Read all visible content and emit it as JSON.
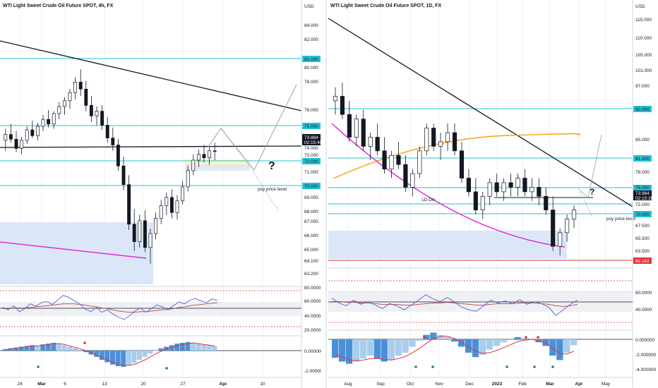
{
  "colors": {
    "bg": "#ffffff",
    "up": "#131722",
    "down": "#131722",
    "cyan": "#22c3d6",
    "magenta": "#e02ad8",
    "orange": "#f2a21a",
    "red": "#e0323a",
    "blue": "#2962ff",
    "rsi": "#5b5bd6",
    "rsi_ma": "#b04a4a",
    "macd_hist": "#4a90d9",
    "macd_hist_pale": "#a9cdee",
    "zone_blue": "#dbe7f9",
    "zone_yellow": "#fbf5c8",
    "grid": "#eef0f3",
    "green": "#1e8e3e"
  },
  "chart_data": [
    {
      "type": "candlestick",
      "title": "WTI Light Sweet Crude Oil Future SPOT, 4h, FX",
      "axis_unit": "USD",
      "ylim": [
        62.5,
        86.0
      ],
      "price_ticks": [
        "84.000",
        "82.000",
        "80.000",
        "78.000",
        "76.000",
        "74.000",
        "73.000",
        "71.000",
        "69.000",
        "68.000",
        "67.000",
        "66.000",
        "65.000",
        "64.100",
        "63.200"
      ],
      "level_labels": [
        "81.000",
        "75.000",
        "72.000",
        "70.000"
      ],
      "last_price": {
        "price": "73.884",
        "countdown": "02:15:40"
      },
      "x_ticks": [
        "24",
        "Mar",
        "6",
        "13",
        "20",
        "27",
        "Apr",
        "10"
      ],
      "annotations": [
        "?",
        "psy price level"
      ],
      "candles": [
        {
          "o": 74.8,
          "h": 75.8,
          "l": 73.9,
          "c": 75.3
        },
        {
          "o": 75.3,
          "h": 76.2,
          "l": 74.6,
          "c": 74.9
        },
        {
          "o": 74.9,
          "h": 75.6,
          "l": 73.8,
          "c": 74.1
        },
        {
          "o": 74.1,
          "h": 75.1,
          "l": 73.6,
          "c": 74.8
        },
        {
          "o": 74.8,
          "h": 76.0,
          "l": 74.5,
          "c": 75.7
        },
        {
          "o": 75.7,
          "h": 76.5,
          "l": 75.0,
          "c": 75.2
        },
        {
          "o": 75.2,
          "h": 76.3,
          "l": 74.8,
          "c": 76.0
        },
        {
          "o": 76.0,
          "h": 77.0,
          "l": 75.6,
          "c": 76.6
        },
        {
          "o": 76.6,
          "h": 77.4,
          "l": 75.9,
          "c": 76.2
        },
        {
          "o": 76.2,
          "h": 77.3,
          "l": 75.8,
          "c": 77.1
        },
        {
          "o": 77.1,
          "h": 78.1,
          "l": 76.6,
          "c": 77.7
        },
        {
          "o": 77.7,
          "h": 78.5,
          "l": 77.0,
          "c": 78.2
        },
        {
          "o": 78.2,
          "h": 79.2,
          "l": 77.5,
          "c": 78.9
        },
        {
          "o": 78.9,
          "h": 80.2,
          "l": 78.3,
          "c": 79.8
        },
        {
          "o": 79.8,
          "h": 80.9,
          "l": 78.6,
          "c": 79.2
        },
        {
          "o": 79.2,
          "h": 79.9,
          "l": 77.3,
          "c": 77.8
        },
        {
          "o": 77.8,
          "h": 78.6,
          "l": 76.4,
          "c": 76.9
        },
        {
          "o": 76.9,
          "h": 77.7,
          "l": 76.1,
          "c": 77.3
        },
        {
          "o": 77.3,
          "h": 77.8,
          "l": 75.7,
          "c": 76.1
        },
        {
          "o": 76.1,
          "h": 76.8,
          "l": 74.6,
          "c": 75.0
        },
        {
          "o": 75.0,
          "h": 75.9,
          "l": 73.9,
          "c": 74.4
        },
        {
          "o": 74.4,
          "h": 74.9,
          "l": 72.2,
          "c": 72.6
        },
        {
          "o": 72.6,
          "h": 73.4,
          "l": 70.5,
          "c": 71.0
        },
        {
          "o": 71.0,
          "h": 71.8,
          "l": 67.1,
          "c": 67.6
        },
        {
          "o": 67.6,
          "h": 68.9,
          "l": 65.3,
          "c": 66.1
        },
        {
          "o": 66.1,
          "h": 68.4,
          "l": 65.6,
          "c": 67.9
        },
        {
          "o": 67.9,
          "h": 68.8,
          "l": 65.2,
          "c": 65.6
        },
        {
          "o": 65.6,
          "h": 67.2,
          "l": 64.2,
          "c": 66.8
        },
        {
          "o": 66.8,
          "h": 68.6,
          "l": 66.3,
          "c": 68.1
        },
        {
          "o": 68.1,
          "h": 69.7,
          "l": 67.6,
          "c": 69.2
        },
        {
          "o": 69.2,
          "h": 70.3,
          "l": 68.4,
          "c": 69.9
        },
        {
          "o": 69.9,
          "h": 70.6,
          "l": 68.1,
          "c": 68.6
        },
        {
          "o": 68.6,
          "h": 70.1,
          "l": 68.0,
          "c": 69.6
        },
        {
          "o": 69.6,
          "h": 71.3,
          "l": 69.3,
          "c": 70.8
        },
        {
          "o": 70.8,
          "h": 72.6,
          "l": 70.4,
          "c": 72.2
        },
        {
          "o": 72.2,
          "h": 73.6,
          "l": 71.8,
          "c": 73.1
        },
        {
          "o": 73.1,
          "h": 74.0,
          "l": 72.5,
          "c": 73.6
        },
        {
          "o": 73.6,
          "h": 74.4,
          "l": 72.9,
          "c": 73.3
        },
        {
          "o": 73.3,
          "h": 74.2,
          "l": 72.7,
          "c": 73.9
        },
        {
          "o": 73.9,
          "h": 74.6,
          "l": 73.1,
          "c": 73.884
        }
      ],
      "rsi": {
        "ticks": [
          "80.0000",
          "60.0000",
          "40.0000",
          "20.0000"
        ],
        "values": [
          52,
          48,
          55,
          45,
          50,
          58,
          54,
          60,
          62,
          57,
          65,
          72,
          69,
          63,
          58,
          49,
          45,
          52,
          44,
          48,
          41,
          36,
          32,
          38,
          46,
          51,
          44,
          50,
          56,
          53,
          48,
          55,
          61,
          58,
          64,
          67,
          63,
          60,
          66,
          64
        ],
        "ma": [
          50,
          50,
          51,
          51,
          51,
          52,
          53,
          54,
          55,
          56,
          57,
          58,
          58,
          58,
          57,
          56,
          54,
          53,
          51,
          50,
          48,
          46,
          45,
          44,
          44,
          45,
          45,
          46,
          47,
          48,
          49,
          50,
          52,
          53,
          55,
          56,
          57,
          58,
          59,
          60
        ]
      },
      "macd": {
        "ticks": [
          "0.000000",
          "-2.000000"
        ],
        "hist": [
          0.2,
          0.3,
          0.4,
          0.5,
          0.6,
          0.7,
          0.6,
          0.8,
          0.9,
          1.0,
          0.9,
          0.7,
          0.5,
          0.3,
          0.1,
          -0.2,
          -0.5,
          -0.8,
          -1.2,
          -1.5,
          -1.8,
          -2.0,
          -2.1,
          -1.9,
          -1.6,
          -1.2,
          -0.8,
          -0.4,
          0.0,
          0.3,
          0.5,
          0.7,
          0.9,
          1.0,
          1.1,
          1.0,
          0.9,
          0.8,
          0.7,
          0.6
        ],
        "signal": [
          0.1,
          0.2,
          0.3,
          0.4,
          0.5,
          0.6,
          0.6,
          0.7,
          0.8,
          0.9,
          0.9,
          0.8,
          0.6,
          0.4,
          0.2,
          0.0,
          -0.3,
          -0.6,
          -0.9,
          -1.2,
          -1.5,
          -1.7,
          -1.9,
          -1.9,
          -1.8,
          -1.5,
          -1.2,
          -0.8,
          -0.4,
          -0.1,
          0.2,
          0.4,
          0.6,
          0.8,
          0.9,
          1.0,
          0.9,
          0.8,
          0.7,
          0.6
        ]
      }
    },
    {
      "type": "candlestick",
      "title": "WTI Light Sweet Crude Oil Future SPOT, 1D, FX",
      "axis_unit": "USD",
      "ylim": [
        62.0,
        118.0
      ],
      "price_ticks": [
        "115.000",
        "110.000",
        "105.000",
        "101.000",
        "97.000",
        "85.000",
        "78.000",
        "69.000",
        "67.500",
        "65.500",
        "63.500"
      ],
      "level_labels": [
        "92.000",
        "81.000",
        "75.000",
        "72.000",
        "70.000",
        "62.162"
      ],
      "last_price": {
        "price": "73.984",
        "countdown": "02:15:39"
      },
      "x_ticks": [
        "Aug",
        "Sep",
        "Oct",
        "Nov",
        "Dec",
        "2023",
        "Feb",
        "Mar",
        "Apr",
        "May"
      ],
      "annotations": [
        "?",
        "1D Div",
        "psy price level"
      ],
      "candles": [
        {
          "o": 98,
          "h": 101,
          "l": 95,
          "c": 99
        },
        {
          "o": 99,
          "h": 102,
          "l": 94,
          "c": 95
        },
        {
          "o": 95,
          "h": 98,
          "l": 89,
          "c": 90
        },
        {
          "o": 90,
          "h": 95,
          "l": 88,
          "c": 94
        },
        {
          "o": 94,
          "h": 96,
          "l": 87,
          "c": 88
        },
        {
          "o": 88,
          "h": 91,
          "l": 85,
          "c": 90
        },
        {
          "o": 90,
          "h": 93,
          "l": 86,
          "c": 87
        },
        {
          "o": 87,
          "h": 90,
          "l": 82,
          "c": 83
        },
        {
          "o": 83,
          "h": 87,
          "l": 81,
          "c": 86
        },
        {
          "o": 86,
          "h": 89,
          "l": 83,
          "c": 84
        },
        {
          "o": 84,
          "h": 86,
          "l": 78,
          "c": 79
        },
        {
          "o": 79,
          "h": 83,
          "l": 77,
          "c": 82
        },
        {
          "o": 82,
          "h": 88,
          "l": 81,
          "c": 87
        },
        {
          "o": 87,
          "h": 93,
          "l": 86,
          "c": 92
        },
        {
          "o": 92,
          "h": 93,
          "l": 87,
          "c": 88
        },
        {
          "o": 88,
          "h": 91,
          "l": 85,
          "c": 89
        },
        {
          "o": 89,
          "h": 93,
          "l": 87,
          "c": 91
        },
        {
          "o": 91,
          "h": 93,
          "l": 86,
          "c": 87
        },
        {
          "o": 87,
          "h": 89,
          "l": 80,
          "c": 81
        },
        {
          "o": 81,
          "h": 83,
          "l": 77,
          "c": 78
        },
        {
          "o": 78,
          "h": 81,
          "l": 73,
          "c": 74
        },
        {
          "o": 74,
          "h": 78,
          "l": 72,
          "c": 77
        },
        {
          "o": 77,
          "h": 81,
          "l": 75,
          "c": 80
        },
        {
          "o": 80,
          "h": 82,
          "l": 77,
          "c": 78
        },
        {
          "o": 78,
          "h": 81,
          "l": 76,
          "c": 80
        },
        {
          "o": 80,
          "h": 82,
          "l": 77,
          "c": 79
        },
        {
          "o": 79,
          "h": 82,
          "l": 77,
          "c": 81
        },
        {
          "o": 81,
          "h": 83,
          "l": 77,
          "c": 78
        },
        {
          "o": 78,
          "h": 81,
          "l": 76,
          "c": 79
        },
        {
          "o": 79,
          "h": 81,
          "l": 75,
          "c": 77
        },
        {
          "o": 77,
          "h": 79,
          "l": 73,
          "c": 74
        },
        {
          "o": 74,
          "h": 77,
          "l": 65,
          "c": 66
        },
        {
          "o": 66,
          "h": 70,
          "l": 64,
          "c": 69
        },
        {
          "o": 69,
          "h": 73,
          "l": 67,
          "c": 72
        },
        {
          "o": 72,
          "h": 75,
          "l": 70,
          "c": 74
        }
      ],
      "rsi": {
        "ticks": [
          "60.0000",
          "40.0000"
        ],
        "values": [
          55,
          48,
          44,
          52,
          46,
          50,
          45,
          40,
          47,
          44,
          38,
          45,
          52,
          60,
          54,
          50,
          56,
          49,
          42,
          38,
          36,
          44,
          52,
          48,
          51,
          47,
          53,
          46,
          50,
          47,
          42,
          30,
          38,
          46,
          52
        ],
        "ma": [
          50,
          50,
          49,
          49,
          48,
          48,
          47,
          46,
          46,
          46,
          45,
          45,
          46,
          47,
          48,
          48,
          49,
          48,
          47,
          46,
          45,
          45,
          46,
          47,
          47,
          47,
          48,
          48,
          48,
          47,
          46,
          44,
          43,
          44,
          46
        ]
      },
      "macd": {
        "ticks": [
          "0.000000",
          "-2.000000",
          "-4.000000"
        ],
        "hist": [
          -2.5,
          -3.0,
          -3.3,
          -3.0,
          -2.6,
          -2.2,
          -2.6,
          -3.0,
          -2.8,
          -2.2,
          -1.8,
          -1.0,
          -0.2,
          0.6,
          0.9,
          0.6,
          0.3,
          -0.3,
          -1.0,
          -1.8,
          -2.4,
          -2.1,
          -1.4,
          -0.9,
          -0.4,
          -0.1,
          0.3,
          0.2,
          0.0,
          -0.4,
          -0.9,
          -2.2,
          -2.8,
          -1.8,
          -0.8
        ],
        "signal": [
          -2.0,
          -2.4,
          -2.8,
          -2.9,
          -2.8,
          -2.6,
          -2.6,
          -2.7,
          -2.8,
          -2.6,
          -2.3,
          -1.8,
          -1.2,
          -0.5,
          0.1,
          0.4,
          0.4,
          0.1,
          -0.4,
          -1.0,
          -1.6,
          -1.9,
          -1.8,
          -1.5,
          -1.1,
          -0.7,
          -0.3,
          -0.1,
          0.0,
          -0.2,
          -0.5,
          -1.2,
          -1.9,
          -2.0,
          -1.6
        ]
      }
    }
  ]
}
